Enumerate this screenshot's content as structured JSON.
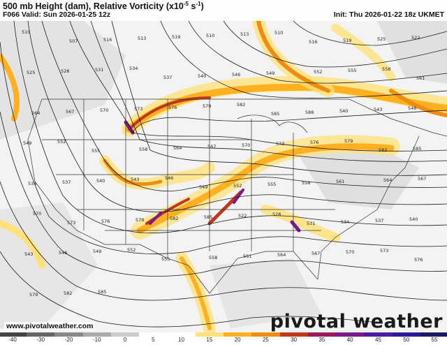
{
  "header": {
    "title_main": "500 mb Height (dam), Relative Vorticity (x10",
    "title_exp": "-5",
    "title_unit": " s",
    "title_unit_exp": "-1",
    "title_close": ")",
    "valid": "F066 Valid: Sun 2026-01-25 12z",
    "init": "Init: Thu 2026-01-22 18z UKMET"
  },
  "website": "www.pivotalweather.com",
  "brand": "pivotal weather",
  "colorbar": {
    "ticks": [
      "-40",
      "-30",
      "-20",
      "-10",
      "0",
      "5",
      "10",
      "15",
      "20",
      "25",
      "30",
      "35",
      "40",
      "45",
      "50",
      "55"
    ],
    "segment_colors": [
      "#444444",
      "#666666",
      "#888888",
      "#aaaaaa",
      "#cccccc",
      "#ffffff",
      "#ffffff",
      "#ffe27a",
      "#ffb020",
      "#f08c10",
      "#c0381c",
      "#9c1a5c",
      "#7a1a8c",
      "#4c1aa6",
      "#2a1a9c",
      "#1a1a6a"
    ]
  },
  "map_style": {
    "height_contour_color": "#1a1a1a",
    "border_color": "#333333",
    "vort_colors": {
      "light": "#ffe27a",
      "med": "#ffb020",
      "strong": "#f08c10",
      "max": "#c0381c",
      "peak": "#7a1a8c",
      "negative": "#b8b8b8"
    }
  },
  "contour_labels": [
    "510",
    "507",
    "516",
    "513",
    "519",
    "510",
    "513",
    "510",
    "516",
    "519",
    "525",
    "522",
    "525",
    "528",
    "531",
    "534",
    "537",
    "540",
    "546",
    "549",
    "552",
    "555",
    "558",
    "561",
    "564",
    "567",
    "570",
    "573",
    "576",
    "579",
    "582",
    "585",
    "588",
    "540",
    "543",
    "546",
    "549",
    "552",
    "555",
    "558",
    "564",
    "567",
    "570",
    "573",
    "576",
    "579",
    "582",
    "585",
    "534",
    "537",
    "540",
    "543",
    "546",
    "549",
    "552",
    "555",
    "558",
    "561",
    "564",
    "567",
    "570",
    "573",
    "576",
    "579",
    "582",
    "585",
    "522",
    "528",
    "531",
    "534",
    "537",
    "540",
    "543",
    "546",
    "549",
    "552",
    "555",
    "558",
    "561",
    "564",
    "567",
    "570",
    "573",
    "576",
    "579",
    "582",
    "585"
  ]
}
